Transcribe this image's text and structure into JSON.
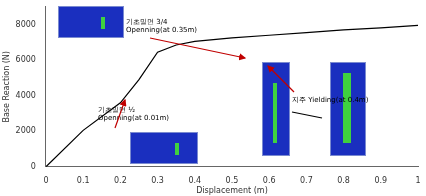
{
  "chart_data": {
    "type": "line",
    "x_label": "Displacement (m)",
    "y_label": "Base Reaction (N)",
    "x": [
      0,
      0.1,
      0.2,
      0.25,
      0.3,
      0.35,
      0.4,
      0.5,
      0.6,
      0.7,
      0.8,
      0.9,
      1.0
    ],
    "values": [
      0,
      2050,
      3600,
      4900,
      6450,
      6850,
      7050,
      7250,
      7400,
      7550,
      7700,
      7820,
      7950
    ],
    "color": "#000000",
    "xlim": [
      0,
      1
    ],
    "xticks": [
      0,
      0.1,
      0.2,
      0.3,
      0.4,
      0.5,
      0.6,
      0.7,
      0.8,
      0.9,
      1
    ],
    "ylim": [
      0,
      9000
    ],
    "yticks": [
      0,
      2000,
      4000,
      6000,
      8000
    ],
    "grid": false,
    "annotations": [
      [
        "기초밑면 3/4",
        "Openning(at 0.35m)"
      ],
      [
        "기초밑면 ½",
        "Openning(at 0.01m)"
      ],
      [
        "지주 Yielding(at 0.4m)"
      ]
    ]
  }
}
